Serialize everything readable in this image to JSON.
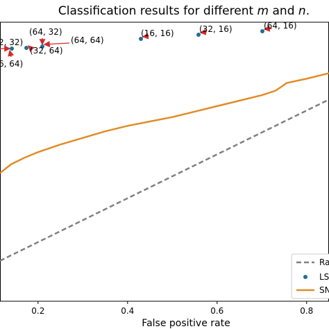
{
  "chart_data": {
    "type": "line",
    "title": "Classification results for different m and n.",
    "title_parts": {
      "prefix": "Classification results for different ",
      "m": "m",
      "and": " and ",
      "n": "n",
      "suffix": "."
    },
    "xlabel": "False positive rate",
    "ylabel": "",
    "xlim": [
      0.115,
      0.85
    ],
    "ylim": [
      0.0,
      1.0
    ],
    "x_ticks": [
      0.2,
      0.4,
      0.6,
      0.8
    ],
    "x_tick_labels": [
      "0.2",
      "0.4",
      "0.6",
      "0.8"
    ],
    "grid": false,
    "legend_position": "bottom-right",
    "legend_entries": [
      "Ra",
      "LS",
      "SN"
    ],
    "series": [
      {
        "kind": "dashed-line",
        "color": "#808080",
        "x": [
          0.115,
          0.85
        ],
        "y": [
          0.115,
          0.85
        ]
      },
      {
        "kind": "line",
        "color": "#e08c28",
        "x": [
          0.115,
          0.14,
          0.17,
          0.2,
          0.25,
          0.3,
          0.35,
          0.4,
          0.45,
          0.5,
          0.55,
          0.6,
          0.65,
          0.7,
          0.73,
          0.745,
          0.755,
          0.8,
          0.85
        ],
        "y": [
          0.515,
          0.555,
          0.585,
          0.61,
          0.645,
          0.675,
          0.705,
          0.73,
          0.75,
          0.77,
          0.795,
          0.82,
          0.845,
          0.87,
          0.89,
          0.91,
          0.925,
          0.945,
          0.97
        ]
      }
    ],
    "points": [
      {
        "label": "(16, 16)",
        "x": 0.418,
        "y": 1.196
      },
      {
        "label": "(32, 16)",
        "x": 0.544,
        "y": 1.207
      },
      {
        "label": "(64, 16)",
        "x": 0.69,
        "y": 1.215
      },
      {
        "label": "(64, 32)",
        "x": 0.203,
        "y": 1.16
      },
      {
        "label": "(64, 64)",
        "x": 0.203,
        "y": 1.16
      },
      {
        "label": "(32, 64)",
        "x": 0.167,
        "y": 1.157
      },
      {
        "label": "2, 32)",
        "x": 0.135,
        "y": 1.155
      },
      {
        "label": "6, 64)",
        "x": 0.135,
        "y": 1.155
      }
    ],
    "point_color": "#1f6e94",
    "arrow_color": "#d62728"
  }
}
